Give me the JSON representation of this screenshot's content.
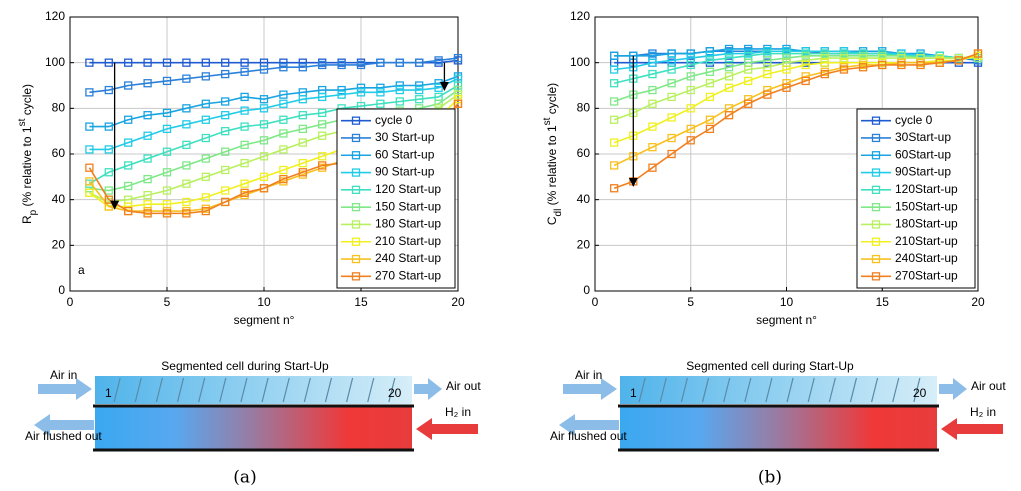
{
  "chart_data": [
    {
      "type": "line",
      "xlabel": "segment n°",
      "ylabel": [
        {
          "text": "R"
        },
        {
          "text": "p",
          "style": "sub"
        },
        {
          "text": " (% relative to 1"
        },
        {
          "text": "st",
          "style": "super"
        },
        {
          "text": " cycle)"
        }
      ],
      "annotation": "a",
      "xlim": [
        0,
        20
      ],
      "xticks": [
        0,
        5,
        10,
        15,
        20
      ],
      "ylim": [
        0,
        120
      ],
      "yticks": [
        0,
        20,
        40,
        60,
        80,
        100,
        120
      ],
      "grid": true,
      "legend": "lower right",
      "x": [
        1,
        2,
        3,
        4,
        5,
        6,
        7,
        8,
        9,
        10,
        11,
        12,
        13,
        14,
        15,
        16,
        17,
        18,
        19,
        20
      ],
      "arrows": [
        {
          "x": [
            2.3,
            2.3
          ],
          "y": [
            100,
            36
          ]
        },
        {
          "x": [
            19.3,
            19.3
          ],
          "y": [
            100,
            88
          ]
        }
      ],
      "series": [
        {
          "name": "cycle 0",
          "color": "#1f5bd0",
          "values": [
            100,
            100,
            100,
            100,
            100,
            100,
            100,
            100,
            100,
            100,
            100,
            100,
            100,
            100,
            100,
            100,
            100,
            100,
            100,
            101
          ]
        },
        {
          "name": "30 Start-up",
          "color": "#2b80da",
          "values": [
            87,
            88,
            90,
            91,
            92,
            93,
            94,
            95,
            96,
            97,
            98,
            98,
            99,
            99,
            99,
            100,
            100,
            100,
            101,
            102
          ]
        },
        {
          "name": "60 Start-up",
          "color": "#18a4e2",
          "values": [
            72,
            72,
            75,
            77,
            78,
            80,
            82,
            83,
            85,
            84,
            86,
            87,
            88,
            88,
            89,
            89,
            90,
            90,
            91,
            94
          ]
        },
        {
          "name": "90 Start-up",
          "color": "#22cbe8",
          "values": [
            62,
            62,
            65,
            68,
            71,
            73,
            75,
            77,
            79,
            80,
            82,
            84,
            85,
            86,
            87,
            87,
            88,
            88,
            89,
            93
          ]
        },
        {
          "name": "120 Start-up",
          "color": "#3fe0c0",
          "values": [
            47,
            52,
            55,
            58,
            61,
            64,
            67,
            70,
            72,
            73,
            75,
            77,
            78,
            80,
            81,
            82,
            83,
            84,
            85,
            90
          ]
        },
        {
          "name": "150 Start-up",
          "color": "#80e888",
          "values": [
            45,
            44,
            46,
            49,
            52,
            55,
            58,
            61,
            64,
            66,
            69,
            71,
            73,
            75,
            76,
            78,
            79,
            80,
            82,
            88
          ]
        },
        {
          "name": "180 Start-up",
          "color": "#b8f060",
          "values": [
            43,
            39,
            40,
            42,
            44,
            47,
            50,
            53,
            56,
            59,
            62,
            65,
            68,
            70,
            72,
            74,
            76,
            78,
            80,
            86
          ]
        },
        {
          "name": "210 Start-up",
          "color": "#f0f020",
          "values": [
            43,
            37,
            37,
            38,
            38,
            39,
            41,
            44,
            47,
            50,
            53,
            56,
            59,
            62,
            65,
            68,
            71,
            73,
            76,
            84
          ]
        },
        {
          "name": "240 Start-up",
          "color": "#f8c020",
          "values": [
            48,
            37,
            35,
            35,
            35,
            35,
            36,
            39,
            42,
            45,
            48,
            51,
            54,
            57,
            60,
            63,
            66,
            69,
            72,
            82
          ]
        },
        {
          "name": "270 Start-up",
          "color": "#f08020",
          "values": [
            54,
            40,
            35,
            34,
            34,
            34,
            35,
            39,
            43,
            45,
            49,
            52,
            55,
            56,
            59,
            62,
            66,
            68,
            72,
            82
          ]
        }
      ]
    },
    {
      "type": "line",
      "xlabel": "segment n°",
      "ylabel": [
        {
          "text": "C"
        },
        {
          "text": "dl",
          "style": "sub"
        },
        {
          "text": " (% relative to 1"
        },
        {
          "text": "st",
          "style": "super"
        },
        {
          "text": " cycle)"
        }
      ],
      "xlim": [
        0,
        20
      ],
      "xticks": [
        0,
        5,
        10,
        15,
        20
      ],
      "ylim": [
        0,
        120
      ],
      "yticks": [
        0,
        20,
        40,
        60,
        80,
        100,
        120
      ],
      "grid": true,
      "legend": "lower right",
      "x": [
        1,
        2,
        3,
        4,
        5,
        6,
        7,
        8,
        9,
        10,
        11,
        12,
        13,
        14,
        15,
        16,
        17,
        18,
        19,
        20
      ],
      "arrows": [
        {
          "x": [
            2,
            2
          ],
          "y": [
            103,
            46
          ]
        }
      ],
      "series": [
        {
          "name": "cycle 0",
          "color": "#1f5bd0",
          "values": [
            100,
            100,
            100,
            100,
            100,
            100,
            100,
            100,
            100,
            100,
            100,
            100,
            100,
            100,
            100,
            100,
            100,
            100,
            100,
            100
          ]
        },
        {
          "name": "30Start-up",
          "color": "#2b80da",
          "values": [
            103,
            103,
            104,
            104,
            104,
            105,
            105,
            105,
            105,
            105,
            105,
            104,
            104,
            104,
            104,
            103,
            103,
            103,
            102,
            101
          ]
        },
        {
          "name": "60Start-up",
          "color": "#18a4e2",
          "values": [
            103,
            103,
            103,
            104,
            104,
            105,
            106,
            106,
            106,
            106,
            105,
            105,
            105,
            105,
            105,
            104,
            104,
            103,
            102,
            102
          ]
        },
        {
          "name": "90Start-up",
          "color": "#22cbe8",
          "values": [
            97,
            98,
            100,
            101,
            102,
            103,
            104,
            104,
            105,
            105,
            105,
            105,
            105,
            104,
            104,
            104,
            103,
            103,
            102,
            102
          ]
        },
        {
          "name": "120Start-up",
          "color": "#3fe0c0",
          "values": [
            91,
            93,
            95,
            97,
            99,
            101,
            102,
            103,
            104,
            104,
            104,
            104,
            104,
            104,
            104,
            103,
            103,
            103,
            102,
            102
          ]
        },
        {
          "name": "150Start-up",
          "color": "#80e888",
          "values": [
            83,
            86,
            88,
            91,
            94,
            96,
            98,
            100,
            101,
            102,
            103,
            103,
            103,
            103,
            103,
            103,
            102,
            102,
            102,
            102
          ]
        },
        {
          "name": "180Start-up",
          "color": "#b8f060",
          "values": [
            75,
            78,
            82,
            85,
            88,
            91,
            94,
            97,
            98,
            100,
            101,
            102,
            102,
            102,
            102,
            102,
            102,
            102,
            102,
            103
          ]
        },
        {
          "name": "210Start-up",
          "color": "#f0f020",
          "values": [
            65,
            68,
            72,
            76,
            80,
            85,
            89,
            92,
            95,
            97,
            99,
            100,
            100,
            100,
            100,
            100,
            100,
            101,
            101,
            103
          ]
        },
        {
          "name": "240Start-up",
          "color": "#f8c020",
          "values": [
            55,
            59,
            63,
            67,
            71,
            75,
            80,
            84,
            88,
            91,
            94,
            96,
            98,
            99,
            99,
            100,
            100,
            100,
            101,
            104
          ]
        },
        {
          "name": "270Start-up",
          "color": "#f08020",
          "values": [
            45,
            48,
            54,
            60,
            66,
            71,
            77,
            82,
            86,
            89,
            92,
            95,
            97,
            98,
            99,
            99,
            99,
            100,
            101,
            104
          ]
        }
      ]
    }
  ],
  "diagrams": [
    {
      "title": "Segmented cell during Start-Up",
      "first": "1",
      "last": "20",
      "air_in": "Air in",
      "air_out": "Air out",
      "h2_in": "H₂ in",
      "flushed": "Air flushed out",
      "caption": "(a)"
    },
    {
      "title": "Segmented cell during Start-Up",
      "first": "1",
      "last": "20",
      "air_in": "Air in",
      "air_out": "Air out",
      "h2_in": "H₂ in",
      "flushed": "Air flushed out",
      "caption": "(b)"
    }
  ]
}
